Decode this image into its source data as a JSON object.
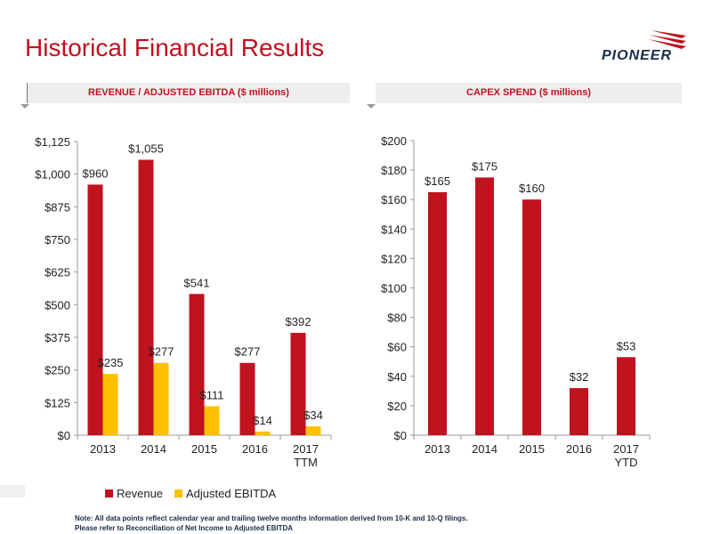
{
  "page": {
    "title": "Historical Financial Results",
    "logo_text": "PIONEER",
    "note_lines": [
      "Note: All data points reflect calendar year and trailing twelve months information derived from 10-K and 10-Q filings.",
      "Please refer to Reconciliation of Net Income to Adjusted EBITDA"
    ]
  },
  "colors": {
    "accent": "#c0121f",
    "revenue": "#c0121f",
    "ebitda": "#ffc000",
    "navy": "#1a2b4a"
  },
  "chart_data": [
    {
      "type": "bar",
      "title": "REVENUE / ADJUSTED EBITDA ($ millions)",
      "categories": [
        "2013",
        "2014",
        "2015",
        "2016",
        "2017\nTTM"
      ],
      "series": [
        {
          "name": "Revenue",
          "values": [
            960,
            1055,
            541,
            277,
            392
          ],
          "labels": [
            "$960",
            "$1,055",
            "$541",
            "$277",
            "$392"
          ]
        },
        {
          "name": "Adjusted EBITDA",
          "values": [
            235,
            277,
            111,
            14,
            34
          ],
          "labels": [
            "$235",
            "$277",
            "$111",
            "$14",
            "$34"
          ]
        }
      ],
      "ylim": [
        0,
        1125
      ],
      "yticks": [
        0,
        125,
        250,
        375,
        500,
        625,
        750,
        875,
        1000,
        1125
      ],
      "ytick_labels": [
        "$0",
        "$125",
        "$250",
        "$375",
        "$500",
        "$625",
        "$750",
        "$875",
        "$1,000",
        "$1,125"
      ],
      "legend": "bottom"
    },
    {
      "type": "bar",
      "title": "CAPEX SPEND ($ millions)",
      "categories": [
        "2013",
        "2014",
        "2015",
        "2016",
        "2017\nYTD"
      ],
      "series": [
        {
          "values": [
            165,
            175,
            160,
            32,
            53
          ],
          "labels": [
            "$165",
            "$175",
            "$160",
            "$32",
            "$53"
          ]
        }
      ],
      "ylim": [
        0,
        200
      ],
      "yticks": [
        0,
        20,
        40,
        60,
        80,
        100,
        120,
        140,
        160,
        180,
        200
      ],
      "ytick_labels": [
        "$0",
        "$20",
        "$40",
        "$60",
        "$80",
        "$100",
        "$120",
        "$140",
        "$160",
        "$180",
        "$200"
      ]
    }
  ]
}
